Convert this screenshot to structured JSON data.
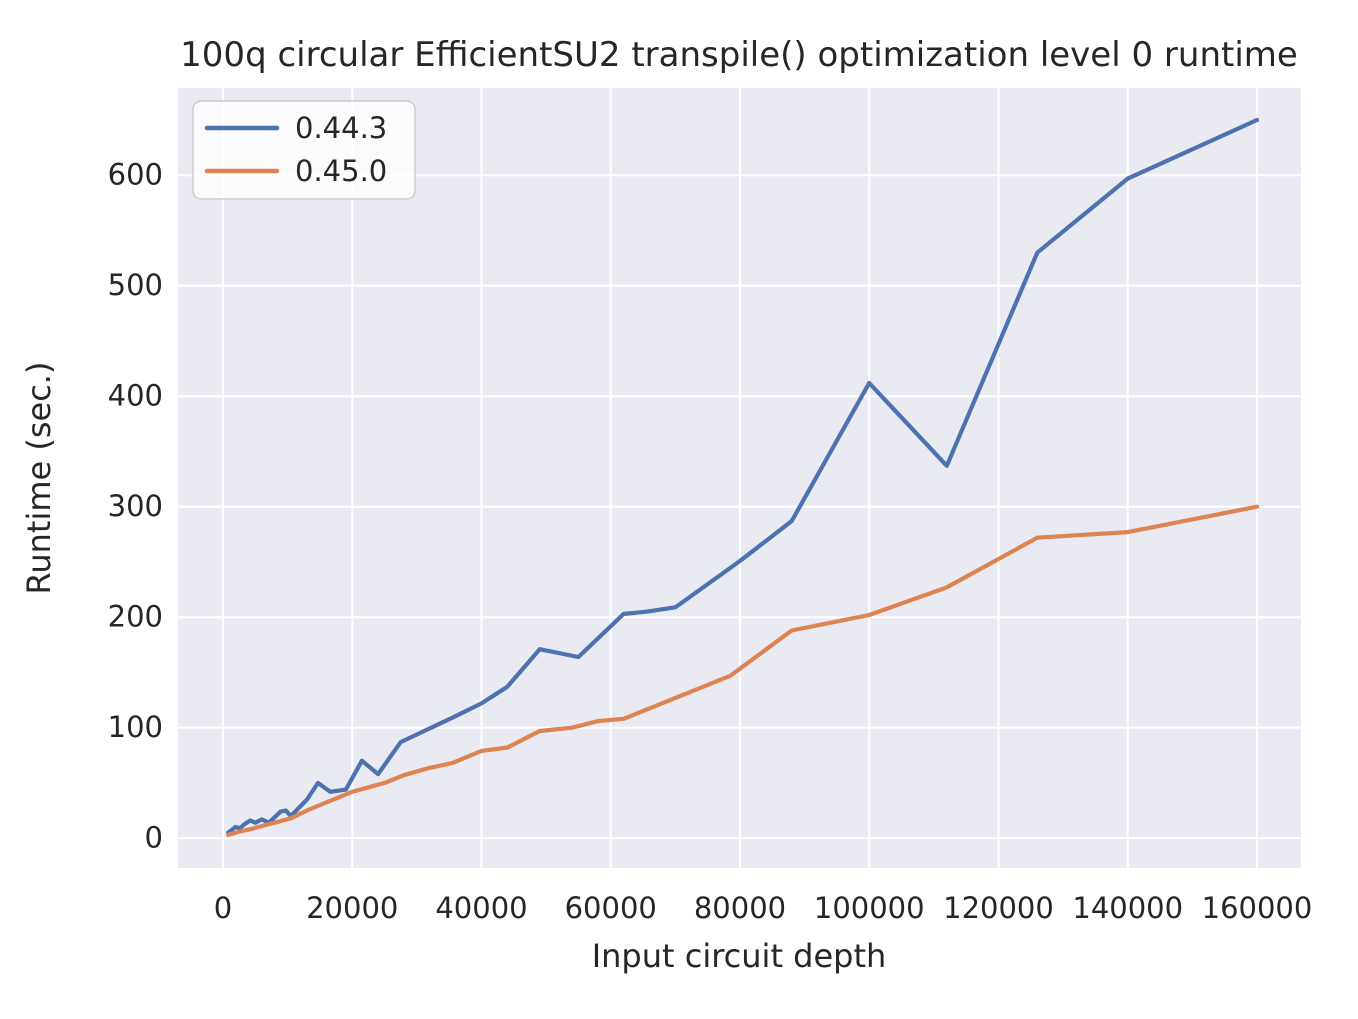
{
  "chart_data": {
    "type": "line",
    "title": "100q circular EfficientSU2 transpile() optimization level 0 runtime",
    "xlabel": "Input circuit depth",
    "ylabel": "Runtime (sec.)",
    "grid": true,
    "legend_position": "upper left",
    "xlim": [
      -6963,
      166810
    ],
    "ylim": [
      -27,
      679
    ],
    "x_ticks": [
      0,
      20000,
      40000,
      60000,
      80000,
      100000,
      120000,
      140000,
      160000
    ],
    "x_tick_labels": [
      "0",
      "20000",
      "40000",
      "60000",
      "80000",
      "100000",
      "120000",
      "140000",
      "160000"
    ],
    "y_ticks": [
      0,
      100,
      200,
      300,
      400,
      500,
      600
    ],
    "y_tick_labels": [
      "0",
      "100",
      "200",
      "300",
      "400",
      "500",
      "600"
    ],
    "colors": {
      "axes_background": "#eaeaf2",
      "grid": "#ffffff",
      "text": "#262626"
    },
    "series": [
      {
        "name": "0.44.3",
        "color": "#4c72b0",
        "x": [
          800,
          1900,
          2600,
          3400,
          4200,
          5000,
          6000,
          7100,
          8900,
          9700,
          10500,
          13000,
          14700,
          16600,
          19000,
          21500,
          24000,
          27500,
          31500,
          35500,
          40000,
          44000,
          49000,
          55000,
          62000,
          65500,
          70000,
          80000,
          88000,
          100000,
          112000,
          126000,
          140000,
          160000
        ],
        "y": [
          5,
          10,
          9,
          13,
          16,
          14,
          17,
          14,
          24,
          25,
          20,
          35,
          50,
          42,
          44,
          70,
          58,
          87,
          98,
          109,
          122,
          137,
          171,
          164,
          203,
          205,
          209,
          251,
          287,
          412,
          337,
          530,
          597,
          650
        ]
      },
      {
        "name": "0.45.0",
        "color": "#dd8452",
        "x": [
          800,
          2600,
          4200,
          6000,
          8000,
          10500,
          13000,
          15000,
          17500,
          20000,
          22500,
          25000,
          28000,
          31500,
          35500,
          40000,
          44000,
          49000,
          54000,
          58000,
          62000,
          70000,
          78500,
          88000,
          100000,
          112000,
          126000,
          140000,
          160000
        ],
        "y": [
          3,
          6,
          8,
          11,
          14,
          18,
          25,
          30,
          36,
          42,
          46,
          50,
          57,
          63,
          68,
          79,
          82,
          97,
          100,
          106,
          108,
          127,
          147,
          188,
          202,
          227,
          272,
          277,
          300
        ]
      }
    ]
  }
}
